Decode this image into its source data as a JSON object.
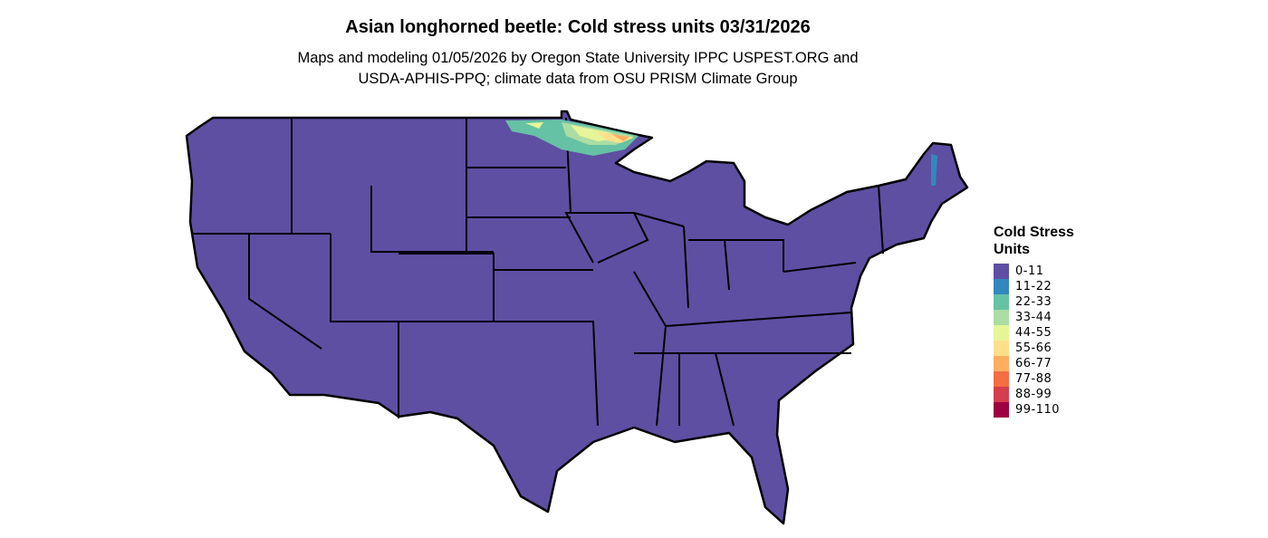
{
  "title": "Asian longhorned beetle: Cold stress units 03/31/2026",
  "subtitle_line1": "Maps and modeling 01/05/2026 by Oregon State University IPPC USPEST.ORG and",
  "subtitle_line2": "USDA-APHIS-PPQ; climate data from OSU PRISM Climate Group",
  "legend": {
    "title": "Cold Stress Units",
    "items": [
      {
        "label": "0-11",
        "color": "#5E4FA2"
      },
      {
        "label": "11-22",
        "color": "#3288BD"
      },
      {
        "label": "22-33",
        "color": "#66C2A5"
      },
      {
        "label": "33-44",
        "color": "#ABDDA4"
      },
      {
        "label": "44-55",
        "color": "#E6F598"
      },
      {
        "label": "55-66",
        "color": "#FEE08B"
      },
      {
        "label": "66-77",
        "color": "#FDAE61"
      },
      {
        "label": "77-88",
        "color": "#F46D43"
      },
      {
        "label": "88-99",
        "color": "#D53E4F"
      },
      {
        "label": "99-110",
        "color": "#9E0142"
      }
    ]
  },
  "map": {
    "region": "Contiguous United States",
    "dominant_class": "0-11",
    "hotspot_region": "northern Minnesota",
    "boundary_color": "#000000"
  }
}
